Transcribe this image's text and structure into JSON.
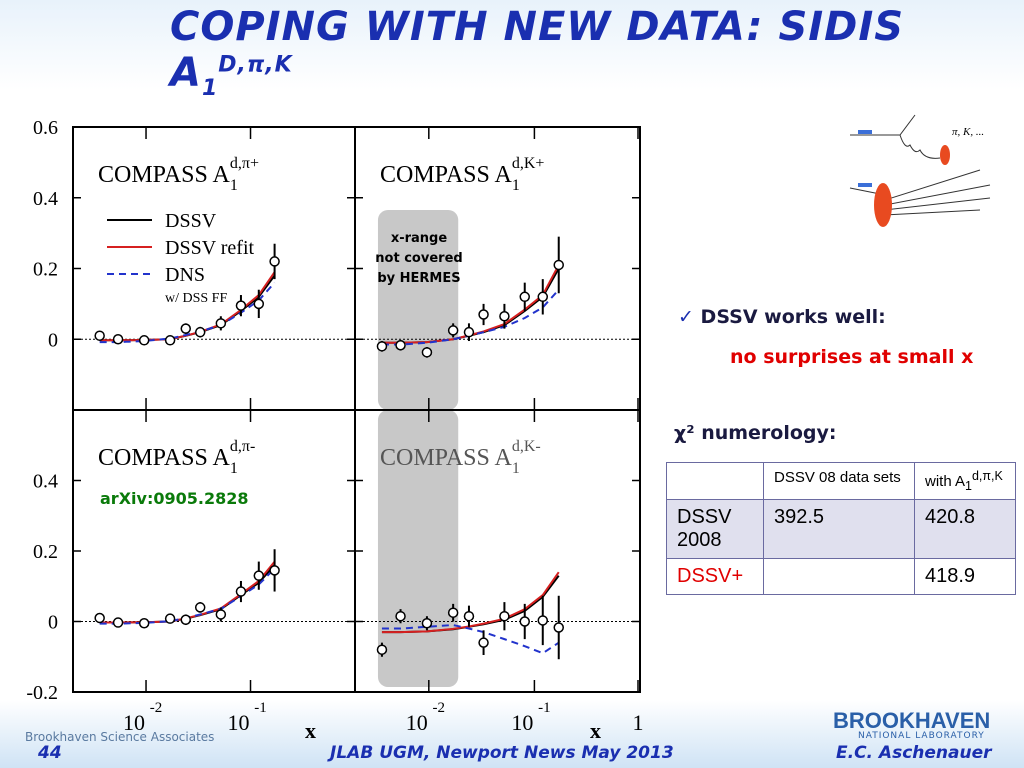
{
  "header": {
    "title": "COPING WITH NEW DATA: SIDIS A",
    "title_sub": "1",
    "title_sup": "D,π,K"
  },
  "plot": {
    "xlim": [
      0.002,
      1
    ],
    "x": [
      0.0036,
      0.0054,
      0.0096,
      0.017,
      0.024,
      0.033,
      0.052,
      0.081,
      0.12,
      0.17
    ],
    "xlabel": "x",
    "legend": [
      {
        "name": "DSSV",
        "color": "#000000",
        "dashed": false
      },
      {
        "name": "DSSV refit",
        "color": "#d62020",
        "dashed": false
      },
      {
        "name": "DNS",
        "color": "#2233cc",
        "dashed": true
      }
    ],
    "legend_note": "w/ DSS FF",
    "hermes_band": {
      "xrange": [
        0.0033,
        0.019
      ],
      "lines": [
        "x-range",
        "not covered",
        "by HERMES"
      ]
    },
    "arxiv": "arXiv:0905.2828",
    "panels": [
      {
        "title": "COMPASS A",
        "sub": "1",
        "sup": "d,π+",
        "ylim": [
          -0.2,
          0.6
        ],
        "yticks": [
          0,
          0.2,
          0.4,
          0.6
        ],
        "xticks": [
          {
            "value": 0.01,
            "label": "10",
            "exp": "-2"
          },
          {
            "value": 0.1,
            "label": "10",
            "exp": "-1"
          }
        ],
        "values": [
          0.01,
          0,
          -0.003,
          -0.003,
          0.03,
          0.02,
          0.045,
          0.095,
          0.1,
          0.22
        ],
        "errors": [
          0.01,
          0.01,
          0.01,
          0.01,
          0.015,
          0.015,
          0.02,
          0.03,
          0.04,
          0.05
        ],
        "curves": [
          [
            -0.003,
            -0.003,
            -0.002,
            0,
            0.01,
            0.02,
            0.04,
            0.08,
            0.12,
            0.18
          ],
          [
            -0.003,
            -0.003,
            -0.002,
            0,
            0.01,
            0.021,
            0.042,
            0.083,
            0.125,
            0.19
          ],
          [
            -0.008,
            -0.008,
            -0.005,
            0.002,
            0.012,
            0.022,
            0.04,
            0.075,
            0.11,
            0.16
          ]
        ]
      },
      {
        "title": "COMPASS A",
        "sub": "1",
        "sup": "d,K+",
        "ylim": [
          -0.2,
          0.6
        ],
        "yticks": [
          0,
          0.2,
          0.4,
          0.6
        ],
        "xticks": [
          {
            "value": 0.01,
            "label": "10",
            "exp": "-2"
          },
          {
            "value": 0.1,
            "label": "10",
            "exp": "-1"
          },
          1
        ],
        "values": [
          -0.02,
          -0.017,
          -0.037,
          0.025,
          0.02,
          0.07,
          0.065,
          0.12,
          0.12,
          0.21
        ],
        "errors": [
          0.015,
          0.015,
          0.015,
          0.02,
          0.025,
          0.03,
          0.035,
          0.04,
          0.05,
          0.08
        ],
        "curves": [
          [
            -0.01,
            -0.01,
            -0.008,
            0,
            0.01,
            0.02,
            0.04,
            0.08,
            0.12,
            0.2
          ],
          [
            -0.01,
            -0.01,
            -0.008,
            0,
            0.011,
            0.022,
            0.043,
            0.084,
            0.125,
            0.21
          ],
          [
            -0.015,
            -0.015,
            -0.01,
            0,
            0.01,
            0.02,
            0.035,
            0.06,
            0.09,
            0.14
          ]
        ]
      },
      {
        "title": "COMPASS A",
        "sub": "1",
        "sup": "d,π-",
        "ylim": [
          -0.2,
          0.6
        ],
        "yticks": [
          -0.2,
          0,
          0.2,
          0.4
        ],
        "xticks": [
          {
            "value": 0.01,
            "label": "10",
            "exp": "-2"
          },
          {
            "value": 0.1,
            "label": "10",
            "exp": "-1"
          }
        ],
        "values": [
          0.01,
          -0.003,
          -0.005,
          0.008,
          0.005,
          0.04,
          0.02,
          0.085,
          0.13,
          0.145
        ],
        "errors": [
          0.01,
          0.01,
          0.01,
          0.01,
          0.015,
          0.015,
          0.02,
          0.03,
          0.04,
          0.06
        ],
        "curves": [
          [
            -0.003,
            -0.003,
            -0.002,
            0,
            0.008,
            0.018,
            0.035,
            0.075,
            0.11,
            0.16
          ],
          [
            -0.003,
            -0.003,
            -0.002,
            0,
            0.009,
            0.019,
            0.037,
            0.078,
            0.115,
            0.17
          ],
          [
            -0.006,
            -0.006,
            -0.004,
            0.001,
            0.01,
            0.02,
            0.036,
            0.072,
            0.105,
            0.15
          ]
        ]
      },
      {
        "title": "COMPASS A",
        "sub": "1",
        "sup": "d,K-",
        "ylim": [
          -0.2,
          0.6
        ],
        "yticks": [
          -0.2,
          0,
          0.2,
          0.4
        ],
        "xticks": [
          {
            "value": 0.01,
            "label": "10",
            "exp": "-2"
          },
          {
            "value": 0.1,
            "label": "10",
            "exp": "-1"
          },
          1
        ],
        "values": [
          -0.08,
          0.015,
          -0.005,
          0.025,
          0.015,
          -0.06,
          0.015,
          0,
          0.003,
          -0.017
        ],
        "errors": [
          0.02,
          0.02,
          0.02,
          0.025,
          0.03,
          0.035,
          0.04,
          0.05,
          0.07,
          0.09
        ],
        "curves": [
          [
            -0.03,
            -0.03,
            -0.028,
            -0.022,
            -0.015,
            -0.008,
            0.005,
            0.03,
            0.07,
            0.13
          ],
          [
            -0.03,
            -0.03,
            -0.028,
            -0.021,
            -0.014,
            -0.006,
            0.008,
            0.035,
            0.075,
            0.14
          ],
          [
            -0.02,
            -0.02,
            -0.015,
            -0.01,
            -0.02,
            -0.03,
            -0.05,
            -0.07,
            -0.09,
            -0.06
          ]
        ]
      }
    ]
  },
  "diagram": {
    "label": "π, K, ..."
  },
  "bullets": {
    "check": "✓",
    "item1": "DSSV works well:",
    "item1_sub": "no surprises at small x",
    "item2": "χ² numerology:"
  },
  "table": {
    "header": {
      "col2": "DSSV 08 data sets",
      "col3": "with A",
      "col3_sub": "1",
      "col3_sup": "d,π,K"
    },
    "rows": [
      {
        "label": "DSSV 2008",
        "dssv08": "392.5",
        "with": "420.8"
      },
      {
        "label": "DSSV+",
        "with": "418.9"
      }
    ]
  },
  "footer": {
    "page": "44",
    "center": "JLAB UGM, Newport News May 2013",
    "author": "E.C. Aschenauer",
    "org": "Brookhaven Science Associates",
    "logo": "BROOKHAVEN",
    "logo_sub": "NATIONAL LABORATORY"
  }
}
